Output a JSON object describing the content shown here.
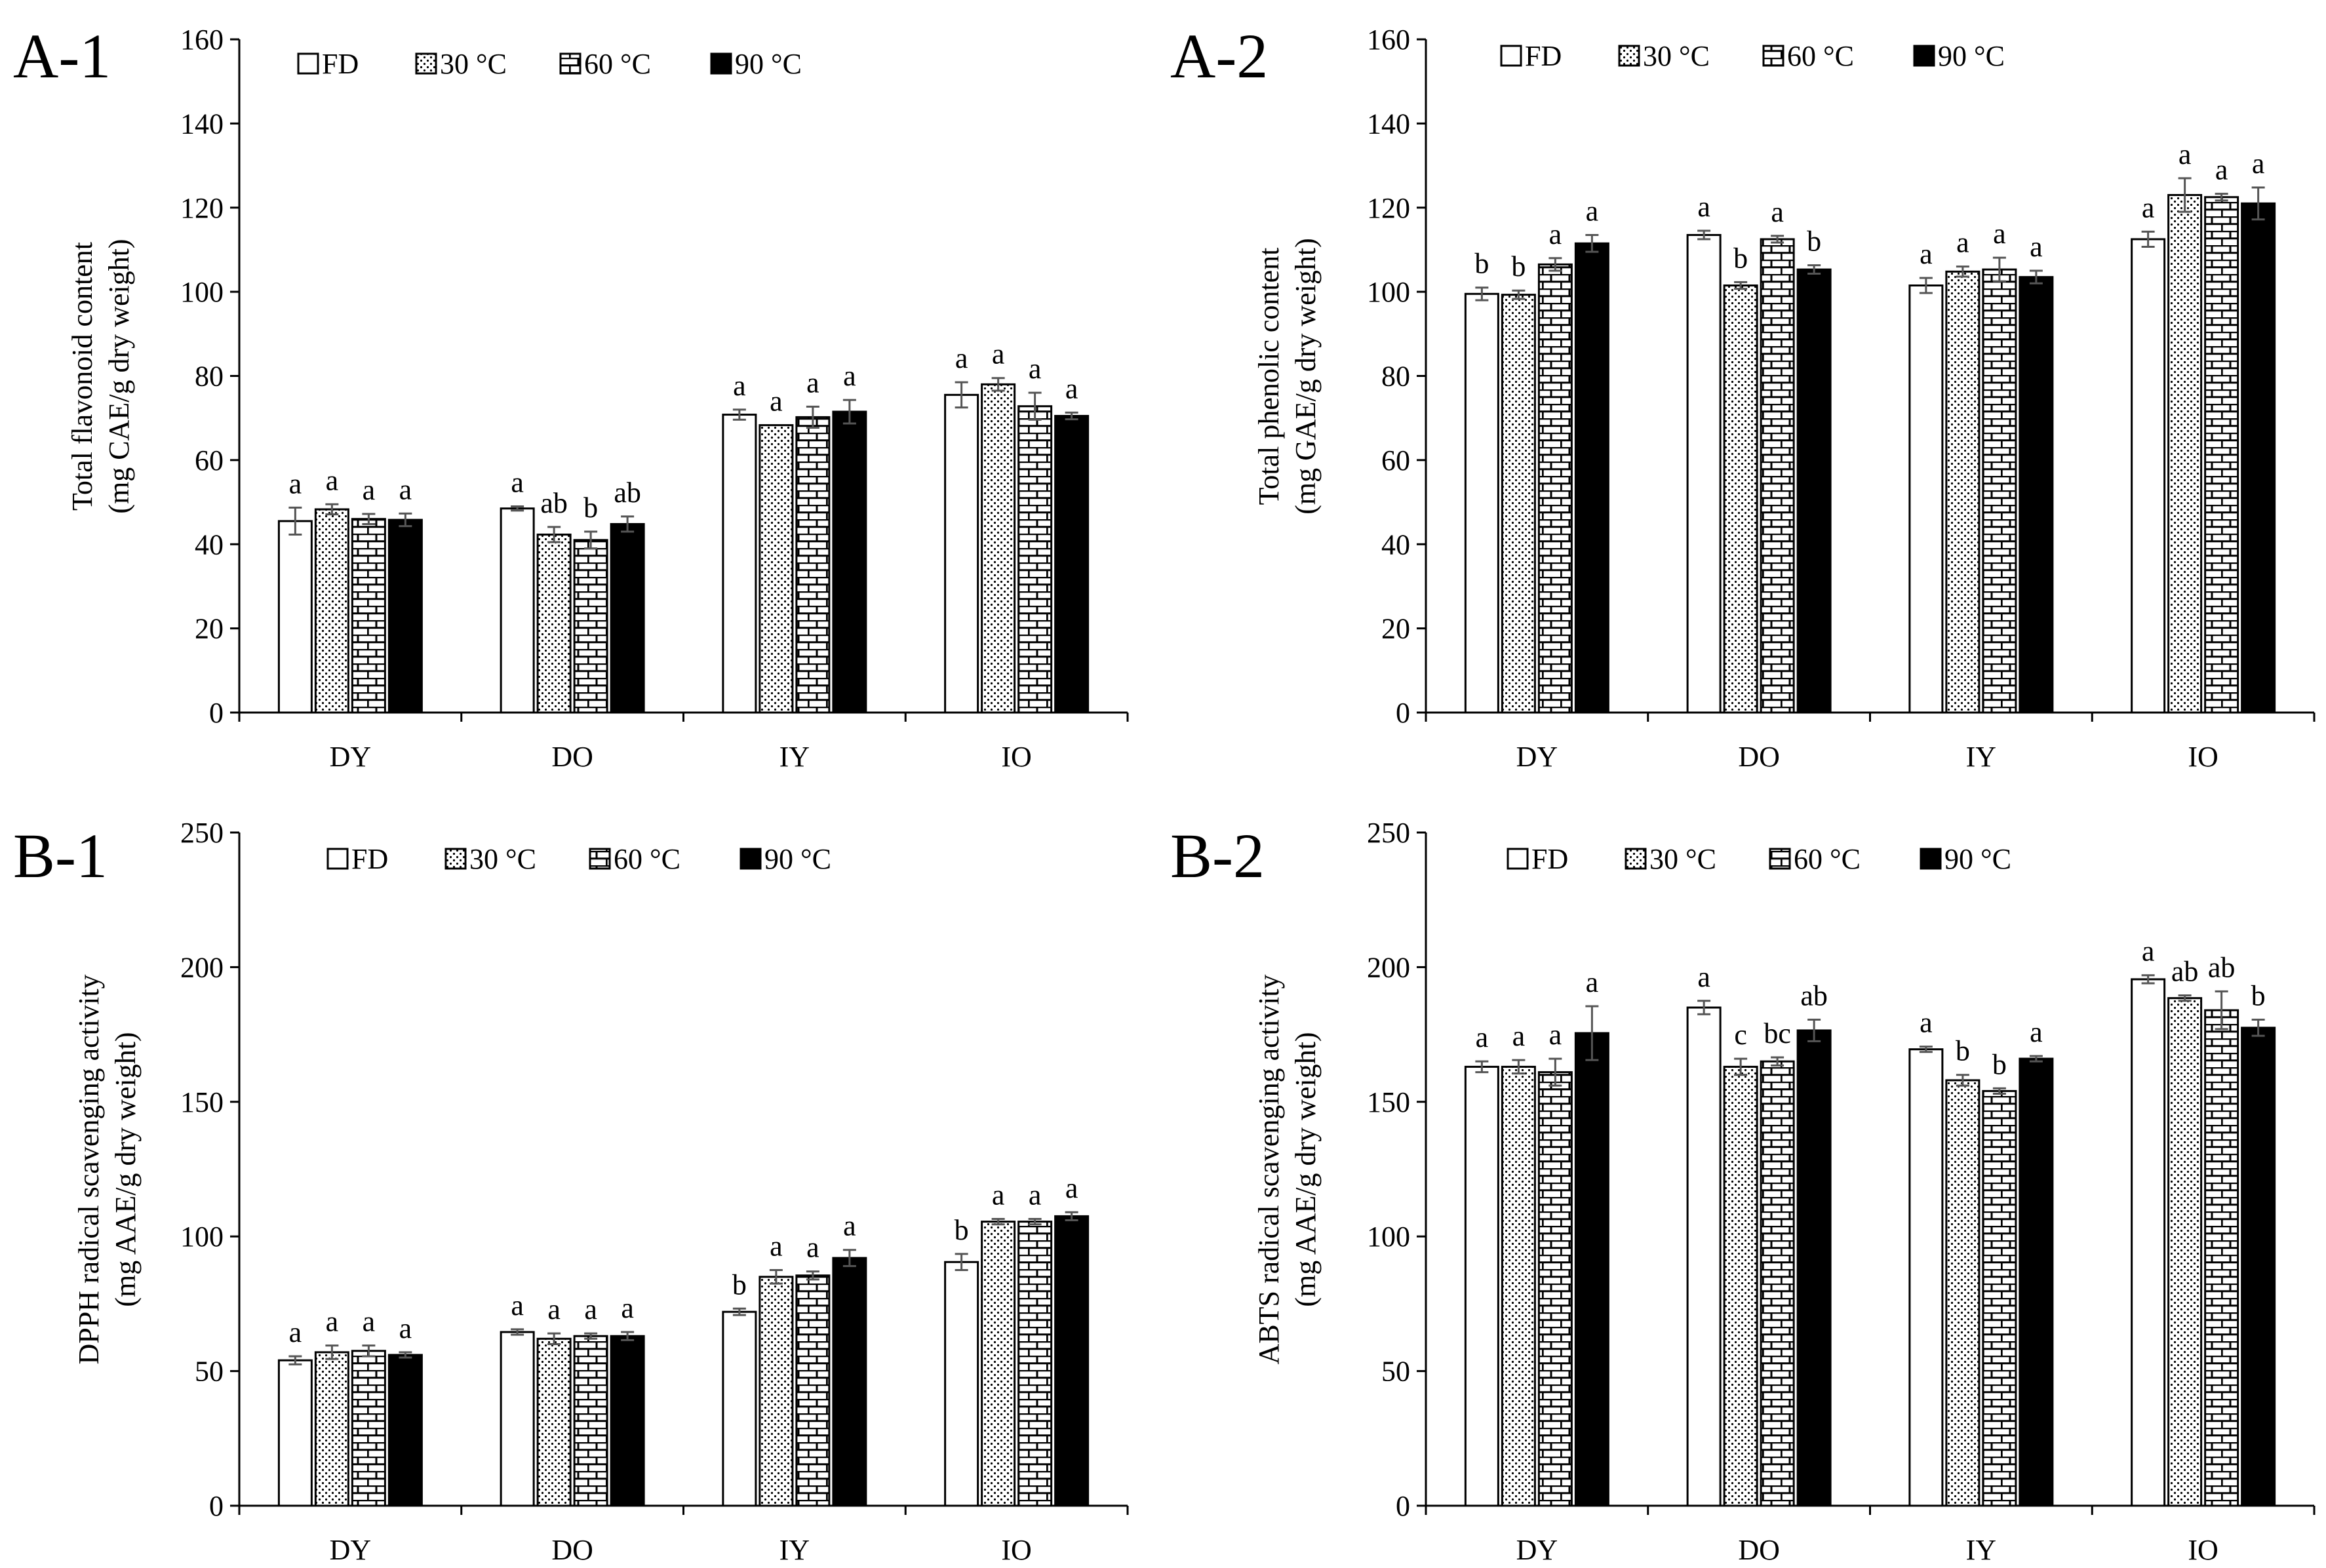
{
  "figure": {
    "legend": [
      "FD",
      "30 °C",
      "60 °C",
      "90 °C"
    ],
    "pattern_names": [
      "open-fill",
      "dotted-fill",
      "brick-fill",
      "solid-fill"
    ],
    "colors": {
      "bar_stroke": "#000000",
      "open": "#ffffff",
      "solid": "#000000",
      "error": "#555555"
    }
  },
  "chart_data": [
    {
      "id": "A-1",
      "type": "bar",
      "panel_label": "A-1",
      "ylabel_line1": "Total flavonoid content",
      "ylabel_line2": "(mg CAE/g dry weight)",
      "ylim": [
        0,
        160
      ],
      "yticks": [
        0,
        20,
        40,
        60,
        80,
        100,
        120,
        140,
        160
      ],
      "categories": [
        "DY",
        "DO",
        "IY",
        "IO"
      ],
      "series": [
        {
          "name": "FD",
          "values": [
            45.5,
            48.5,
            70.8,
            75.5
          ],
          "errors": [
            3.2,
            0.5,
            1.2,
            3.0
          ],
          "labels": [
            "a",
            "a",
            "a",
            "a"
          ]
        },
        {
          "name": "30 °C",
          "values": [
            48.3,
            42.3,
            68.3,
            78.0
          ],
          "errors": [
            1.2,
            1.8,
            0.0,
            1.5
          ],
          "labels": [
            "a",
            "ab",
            "a",
            "a"
          ]
        },
        {
          "name": "60 °C",
          "values": [
            46.0,
            41.0,
            70.2,
            72.8
          ],
          "errors": [
            1.2,
            2.0,
            2.5,
            3.2
          ],
          "labels": [
            "a",
            "b",
            "a",
            "a"
          ]
        },
        {
          "name": "90 °C",
          "values": [
            45.8,
            44.8,
            71.5,
            70.5
          ],
          "errors": [
            1.5,
            1.8,
            2.8,
            0.8
          ],
          "labels": [
            "a",
            "ab",
            "a",
            "a"
          ]
        }
      ]
    },
    {
      "id": "A-2",
      "type": "bar",
      "panel_label": "A-2",
      "ylabel_line1": "Total phenolic content",
      "ylabel_line2": "(mg GAE/g dry weight)",
      "ylim": [
        0,
        160
      ],
      "yticks": [
        0,
        20,
        40,
        60,
        80,
        100,
        120,
        140,
        160
      ],
      "categories": [
        "DY",
        "DO",
        "IY",
        "IO"
      ],
      "series": [
        {
          "name": "FD",
          "values": [
            99.5,
            113.5,
            101.5,
            112.5
          ],
          "errors": [
            1.5,
            1.0,
            1.8,
            1.8
          ],
          "labels": [
            "b",
            "a",
            "a",
            "a"
          ]
        },
        {
          "name": "30 °C",
          "values": [
            99.3,
            101.5,
            104.8,
            123.0
          ],
          "errors": [
            1.0,
            0.8,
            1.2,
            4.0
          ],
          "labels": [
            "b",
            "b",
            "a",
            "a"
          ]
        },
        {
          "name": "60 °C",
          "values": [
            106.5,
            112.5,
            105.3,
            122.5
          ],
          "errors": [
            1.5,
            0.8,
            2.8,
            0.8
          ],
          "labels": [
            "a",
            "a",
            "a",
            "a"
          ]
        },
        {
          "name": "90 °C",
          "values": [
            111.5,
            105.3,
            103.5,
            121.0
          ],
          "errors": [
            2.0,
            1.0,
            1.5,
            3.8
          ],
          "labels": [
            "a",
            "b",
            "a",
            "a"
          ]
        }
      ]
    },
    {
      "id": "B-1",
      "type": "bar",
      "panel_label": "B-1",
      "ylabel_line1": "DPPH radical scavenging activity",
      "ylabel_line2": "(mg AAE/g dry weight)",
      "ylim": [
        0,
        250
      ],
      "yticks": [
        0,
        50,
        100,
        150,
        200,
        250
      ],
      "categories": [
        "DY",
        "DO",
        "IY",
        "IO"
      ],
      "series": [
        {
          "name": "FD",
          "values": [
            54.0,
            64.5,
            72.0,
            90.5
          ],
          "errors": [
            1.5,
            1.0,
            1.2,
            3.0
          ],
          "labels": [
            "a",
            "a",
            "b",
            "b"
          ]
        },
        {
          "name": "30 °C",
          "values": [
            57.0,
            62.0,
            85.0,
            105.5
          ],
          "errors": [
            2.5,
            2.0,
            2.5,
            1.0
          ],
          "labels": [
            "a",
            "a",
            "a",
            "a"
          ]
        },
        {
          "name": "60 °C",
          "values": [
            57.5,
            63.0,
            85.5,
            105.5
          ],
          "errors": [
            2.0,
            1.0,
            1.5,
            1.0
          ],
          "labels": [
            "a",
            "a",
            "a",
            "a"
          ]
        },
        {
          "name": "90 °C",
          "values": [
            56.0,
            63.0,
            92.0,
            107.5
          ],
          "errors": [
            1.0,
            1.5,
            3.0,
            1.5
          ],
          "labels": [
            "a",
            "a",
            "a",
            "a"
          ]
        }
      ]
    },
    {
      "id": "B-2",
      "type": "bar",
      "panel_label": "B-2",
      "ylabel_line1": "ABTS radical scavenging activity",
      "ylabel_line2": "(mg AAE/g dry weight)",
      "ylim": [
        0,
        250
      ],
      "yticks": [
        0,
        50,
        100,
        150,
        200,
        250
      ],
      "categories": [
        "DY",
        "DO",
        "IY",
        "IO"
      ],
      "series": [
        {
          "name": "FD",
          "values": [
            163.0,
            185.0,
            169.5,
            195.5
          ],
          "errors": [
            2.0,
            2.5,
            1.0,
            1.5
          ],
          "labels": [
            "a",
            "a",
            "a",
            "a"
          ]
        },
        {
          "name": "30 °C",
          "values": [
            163.0,
            163.0,
            158.0,
            188.5
          ],
          "errors": [
            2.5,
            3.0,
            2.0,
            1.0
          ],
          "labels": [
            "a",
            "c",
            "b",
            "ab"
          ]
        },
        {
          "name": "60 °C",
          "values": [
            161.0,
            165.0,
            154.0,
            184.0
          ],
          "errors": [
            5.0,
            1.5,
            1.0,
            7.0
          ],
          "labels": [
            "a",
            "bc",
            "b",
            "ab"
          ]
        },
        {
          "name": "90 °C",
          "values": [
            175.5,
            176.5,
            166.0,
            177.5
          ],
          "errors": [
            10.0,
            4.0,
            1.0,
            3.0
          ],
          "labels": [
            "a",
            "ab",
            "a",
            "b"
          ]
        }
      ]
    }
  ]
}
